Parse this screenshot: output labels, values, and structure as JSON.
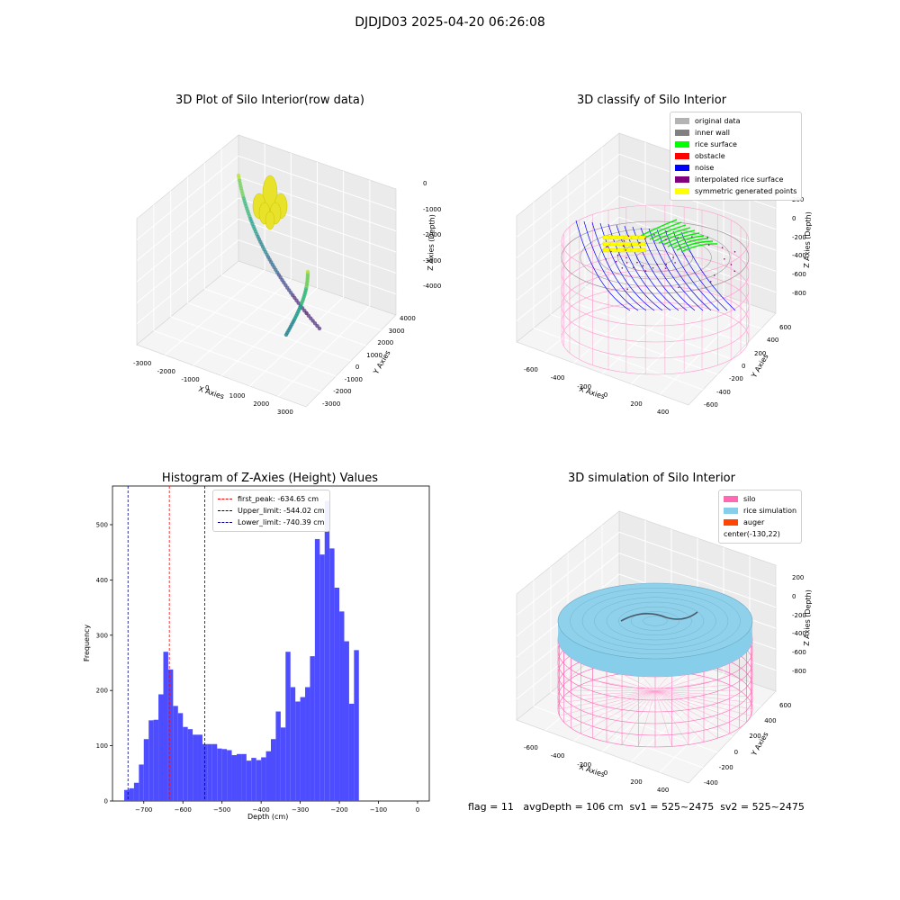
{
  "suptitle": "DJDJD03 2025-04-20 06:26:08",
  "panel1": {
    "title": "3D Plot of Silo Interior(row data)",
    "xlabel": "X Axies",
    "ylabel": "Y Axies",
    "zlabel": "Z Axies (Depth)",
    "xticks": [
      "-3000",
      "-2000",
      "-1000",
      "0",
      "1000",
      "2000",
      "3000"
    ],
    "yticks": [
      "-3000",
      "-2000",
      "-1000",
      "0",
      "1000",
      "2000",
      "3000",
      "4000"
    ],
    "zticks": [
      "0",
      "-1000",
      "-2000",
      "-3000",
      "-4000"
    ]
  },
  "panel2": {
    "title": "3D classify of Silo Interior",
    "xlabel": "X Axies",
    "ylabel": "Y Axies",
    "zlabel": "Z Axies (Depth)",
    "xticks": [
      "-600",
      "-400",
      "-200",
      "0",
      "200",
      "400"
    ],
    "yticks": [
      "-600",
      "-400",
      "-200",
      "0",
      "200",
      "400",
      "600"
    ],
    "zticks": [
      "200",
      "0",
      "-200",
      "-400",
      "-600",
      "-800"
    ],
    "legend": [
      {
        "label": "original data",
        "color": "#b3b3b3"
      },
      {
        "label": "inner wall",
        "color": "#808080"
      },
      {
        "label": "rice surface",
        "color": "#00ff00"
      },
      {
        "label": "obstacle",
        "color": "#ff0000"
      },
      {
        "label": "noise",
        "color": "#0000ff"
      },
      {
        "label": "interpolated rice surface",
        "color": "#800080"
      },
      {
        "label": "symmetric generated points",
        "color": "#ffff00"
      }
    ]
  },
  "panel3": {
    "title": "3D simulation of Silo Interior",
    "xlabel": "X Axies",
    "ylabel": "Y Axies",
    "zlabel": "Z Axies (Depth)",
    "xticks": [
      "-600",
      "-400",
      "-200",
      "0",
      "200",
      "400"
    ],
    "yticks": [
      "-400",
      "-200",
      "0",
      "200",
      "400",
      "600"
    ],
    "zticks": [
      "200",
      "0",
      "-200",
      "-400",
      "-600",
      "-800"
    ],
    "legend": [
      {
        "label": "silo",
        "color": "#ff69b4"
      },
      {
        "label": "rice simulation",
        "color": "#87ceeb"
      },
      {
        "label": "auger",
        "color": "#ff4500"
      },
      {
        "label": "center(-130,22)",
        "color": ""
      }
    ]
  },
  "status": "flag = 11   avgDepth = 106 cm  sv1 = 525~2475  sv2 = 525~2475",
  "chart_data": {
    "type": "bar",
    "title": "Histogram of Z-Axies (Height) Values",
    "xlabel": "Depth (cm)",
    "ylabel": "Frequency",
    "xlim": [
      -780,
      30
    ],
    "ylim": [
      0,
      570
    ],
    "xticks": [
      -700,
      -600,
      -500,
      -400,
      -300,
      -200,
      -100,
      0
    ],
    "yticks": [
      0,
      100,
      200,
      300,
      400,
      500
    ],
    "bar_color": "#4d4dff",
    "bin_start": -750,
    "bin_width": 12.5,
    "values": [
      20,
      23,
      33,
      66,
      112,
      146,
      147,
      193,
      270,
      238,
      172,
      159,
      134,
      130,
      120,
      120,
      103,
      103,
      103,
      95,
      94,
      92,
      83,
      85,
      85,
      73,
      78,
      74,
      79,
      90,
      112,
      162,
      133,
      270,
      206,
      180,
      188,
      206,
      262,
      474,
      446,
      543,
      457,
      386,
      343,
      289,
      176,
      273
    ],
    "vlines": [
      {
        "label": "first_peak: -634.65 cm",
        "x": -634.65,
        "color": "#ff0000"
      },
      {
        "label": "Upper_limit: -544.02 cm",
        "x": -544.02,
        "color": "#00008b"
      },
      {
        "label": "Lower_limit: -740.39 cm",
        "x": -740.39,
        "color": "#00008b"
      }
    ]
  }
}
